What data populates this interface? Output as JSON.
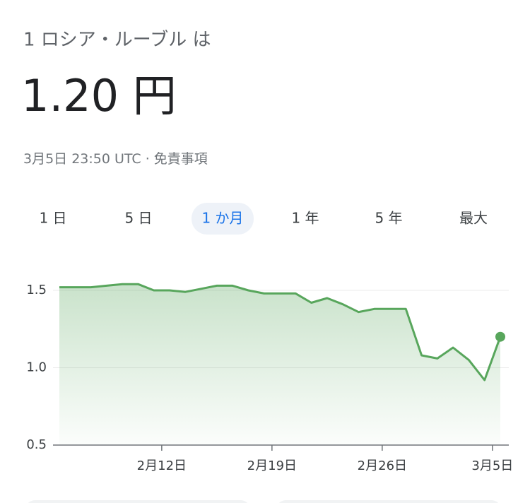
{
  "header": {
    "title": "1 ロシア・ルーブル は",
    "price": "1.20 円",
    "timestamp": "3月5日 23:50 UTC · ",
    "disclaimer": "免責事項"
  },
  "tabs": [
    "1 日",
    "5 日",
    "1 か月",
    "1 年",
    "5 年",
    "最大"
  ],
  "active_tab": 2,
  "chart_data": {
    "type": "line",
    "values": [
      1.52,
      1.52,
      1.52,
      1.53,
      1.54,
      1.54,
      1.5,
      1.5,
      1.49,
      1.51,
      1.53,
      1.53,
      1.5,
      1.48,
      1.48,
      1.48,
      1.42,
      1.45,
      1.41,
      1.36,
      1.38,
      1.38,
      1.38,
      1.08,
      1.06,
      1.13,
      1.05,
      0.92,
      1.2
    ],
    "color": "#58a65c",
    "xlim": [
      0,
      28
    ],
    "xticks": [
      {
        "value": 6.5,
        "label": "2月12日"
      },
      {
        "value": 13.5,
        "label": "2月19日"
      },
      {
        "value": 20.5,
        "label": "2月26日"
      },
      {
        "value": 27.5,
        "label": "3月5日"
      }
    ],
    "ylim": [
      0.5,
      1.6
    ],
    "yticks": [
      0.5,
      {
        "value": 1.0,
        "label": "1.0"
      },
      1.5
    ],
    "grid": true
  }
}
